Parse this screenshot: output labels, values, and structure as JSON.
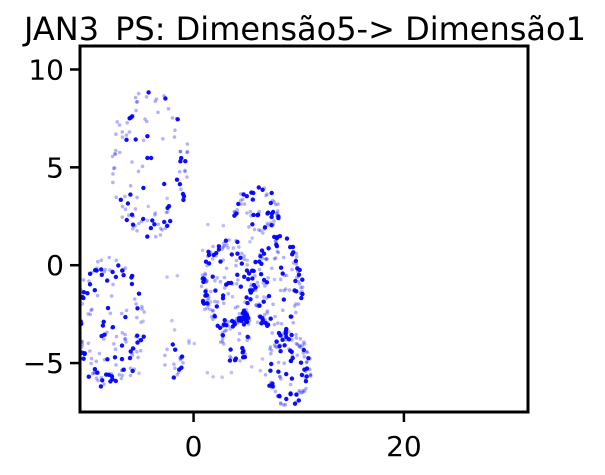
{
  "chart_data": {
    "type": "scatter",
    "title": "JAN3_PS: Dimensão5-> Dimensão1",
    "xlabel": "",
    "ylabel": "",
    "xlim": [
      -10.8,
      31.8
    ],
    "ylim": [
      -7.5,
      11.2
    ],
    "xticks": [
      0,
      20
    ],
    "yticks": [
      10,
      5,
      0,
      -5
    ],
    "xtick_labels": [
      "0",
      "20"
    ],
    "ytick_labels": [
      "10",
      "5",
      "0",
      "−5"
    ],
    "grid": false,
    "legend": "none",
    "colors": {
      "point": "#0000ff",
      "axis": "#000000"
    },
    "clusters": [
      {
        "cx": -4.2,
        "cy": 5.2,
        "rx": 3.8,
        "ry": 3.8,
        "n": 110
      },
      {
        "cx": -8.0,
        "cy": -3.0,
        "rx": 3.4,
        "ry": 3.4,
        "n": 160
      },
      {
        "cx": -2.0,
        "cy": -4.9,
        "rx": 1.0,
        "ry": 0.9,
        "n": 18
      },
      {
        "cx": 3.2,
        "cy": -1.0,
        "rx": 2.5,
        "ry": 2.4,
        "n": 150
      },
      {
        "cx": 4.0,
        "cy": -3.5,
        "rx": 1.5,
        "ry": 1.5,
        "n": 40
      },
      {
        "cx": 6.0,
        "cy": 2.8,
        "rx": 2.2,
        "ry": 1.2,
        "n": 60
      },
      {
        "cx": 8.0,
        "cy": -1.0,
        "rx": 2.4,
        "ry": 2.6,
        "n": 130
      },
      {
        "cx": 9.0,
        "cy": -5.3,
        "rx": 2.2,
        "ry": 1.9,
        "n": 110
      }
    ]
  }
}
